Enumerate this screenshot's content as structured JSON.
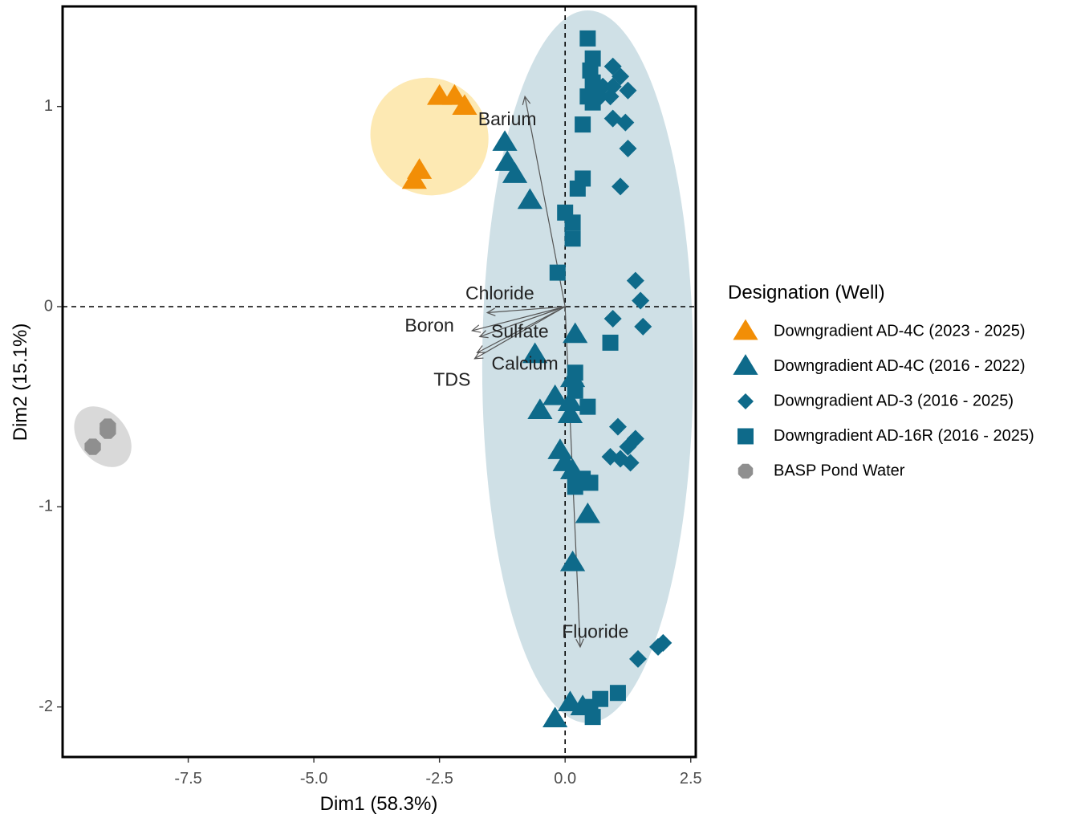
{
  "chart_data": {
    "type": "scatter",
    "title": "",
    "xlabel": "Dim1 (58.3%)",
    "ylabel": "Dim2 (15.1%)",
    "xlim": [
      -10.0,
      2.6
    ],
    "ylim": [
      -2.25,
      1.5
    ],
    "xticks": [
      {
        "value": -7.5,
        "label": "-7.5"
      },
      {
        "value": -5.0,
        "label": "-5.0"
      },
      {
        "value": -2.5,
        "label": "-2.5"
      },
      {
        "value": 0.0,
        "label": "0.0"
      },
      {
        "value": 2.5,
        "label": "2.5"
      }
    ],
    "yticks": [
      {
        "value": 1,
        "label": "1"
      },
      {
        "value": 0,
        "label": "0"
      },
      {
        "value": -1,
        "label": "-1"
      },
      {
        "value": -2,
        "label": "-2"
      }
    ],
    "reference_lines": {
      "x": 0,
      "y": 0,
      "style": "dashed"
    },
    "grid": false,
    "legend": {
      "title": "Designation (Well)",
      "placement": "right"
    },
    "series": [
      {
        "name": "Downgradient AD-4C (2023 - 2025)",
        "color": "#F28E06",
        "marker": "triangle",
        "ellipse": {
          "cx": -2.7,
          "cy": 0.85,
          "rx": 1.15,
          "ry": 0.3,
          "angle_deg": -48,
          "color": "#FDE9B3"
        },
        "points": [
          [
            -2.5,
            1.05
          ],
          [
            -2.2,
            1.05
          ],
          [
            -2.0,
            1.0
          ],
          [
            -2.9,
            0.68
          ],
          [
            -3.0,
            0.63
          ]
        ]
      },
      {
        "name": "Downgradient AD-4C (2016 - 2022)",
        "color": "#0E6A8A",
        "marker": "triangle",
        "ellipse": {
          "cx": 0.45,
          "cy": -0.3,
          "rx": 2.1,
          "ry": 1.78,
          "angle_deg": 0,
          "color": "#CFE0E6"
        },
        "points": [
          [
            -1.2,
            0.82
          ],
          [
            -1.15,
            0.72
          ],
          [
            -1.0,
            0.66
          ],
          [
            -0.7,
            0.53
          ],
          [
            0.2,
            -0.14
          ],
          [
            -0.6,
            -0.24
          ],
          [
            0.15,
            -0.36
          ],
          [
            -0.2,
            -0.45
          ],
          [
            0.1,
            -0.48
          ],
          [
            -0.5,
            -0.52
          ],
          [
            0.1,
            -0.54
          ],
          [
            -0.1,
            -0.72
          ],
          [
            0.0,
            -0.78
          ],
          [
            0.15,
            -0.82
          ],
          [
            0.45,
            -1.04
          ],
          [
            0.15,
            -1.28
          ],
          [
            0.1,
            -1.98
          ],
          [
            0.35,
            -2.0
          ],
          [
            -0.2,
            -2.06
          ]
        ]
      },
      {
        "name": "Downgradient AD-3 (2016 - 2025)",
        "color": "#0E6A8A",
        "marker": "diamond",
        "points": [
          [
            0.95,
            1.2
          ],
          [
            0.75,
            1.1
          ],
          [
            0.95,
            1.1
          ],
          [
            1.1,
            1.15
          ],
          [
            1.25,
            1.08
          ],
          [
            0.9,
            1.05
          ],
          [
            0.7,
            1.05
          ],
          [
            0.95,
            0.94
          ],
          [
            1.2,
            0.92
          ],
          [
            1.25,
            0.79
          ],
          [
            1.1,
            0.6
          ],
          [
            1.4,
            0.13
          ],
          [
            1.5,
            0.03
          ],
          [
            0.95,
            -0.06
          ],
          [
            1.55,
            -0.1
          ],
          [
            1.05,
            -0.6
          ],
          [
            1.4,
            -0.66
          ],
          [
            1.25,
            -0.7
          ],
          [
            0.9,
            -0.75
          ],
          [
            1.1,
            -0.76
          ],
          [
            1.3,
            -0.78
          ],
          [
            1.45,
            -1.76
          ],
          [
            1.85,
            -1.7
          ],
          [
            1.95,
            -1.68
          ]
        ]
      },
      {
        "name": "Downgradient AD-16R (2016 - 2025)",
        "color": "#0E6A8A",
        "marker": "square",
        "points": [
          [
            0.45,
            1.34
          ],
          [
            0.55,
            1.24
          ],
          [
            0.5,
            1.18
          ],
          [
            0.55,
            1.12
          ],
          [
            0.6,
            1.06
          ],
          [
            0.45,
            1.05
          ],
          [
            0.55,
            1.02
          ],
          [
            0.35,
            0.91
          ],
          [
            0.35,
            0.64
          ],
          [
            0.25,
            0.59
          ],
          [
            0.0,
            0.47
          ],
          [
            0.15,
            0.42
          ],
          [
            0.15,
            0.34
          ],
          [
            -0.15,
            0.17
          ],
          [
            0.9,
            -0.18
          ],
          [
            0.2,
            -0.33
          ],
          [
            0.2,
            -0.42
          ],
          [
            0.45,
            -0.5
          ],
          [
            0.35,
            -0.86
          ],
          [
            0.5,
            -0.88
          ],
          [
            0.2,
            -0.9
          ],
          [
            1.05,
            -1.93
          ],
          [
            0.7,
            -1.96
          ],
          [
            0.5,
            -2.0
          ],
          [
            0.55,
            -2.05
          ]
        ]
      },
      {
        "name": "BASP Pond Water",
        "color": "#8F8F8F",
        "marker": "octagon",
        "ellipse": {
          "cx": -9.2,
          "cy": -0.65,
          "rx": 0.48,
          "ry": 0.17,
          "angle_deg": -40,
          "color": "#D9D9D9"
        },
        "points": [
          [
            -9.1,
            -0.62
          ],
          [
            -9.1,
            -0.6
          ],
          [
            -9.4,
            -0.7
          ]
        ]
      }
    ],
    "variables": [
      {
        "name": "Barium",
        "x": -0.8,
        "y": 1.05,
        "label_x": -1.15,
        "label_y": 0.93
      },
      {
        "name": "Chloride",
        "x": -1.55,
        "y": -0.03,
        "label_x": -1.3,
        "label_y": 0.06
      },
      {
        "name": "Boron",
        "x": -1.85,
        "y": -0.12,
        "label_x": -2.7,
        "label_y": -0.1
      },
      {
        "name": "Sulfate",
        "x": -1.7,
        "y": -0.15,
        "label_x": -0.9,
        "label_y": -0.13
      },
      {
        "name": "Calcium",
        "x": -1.75,
        "y": -0.23,
        "label_x": -0.8,
        "label_y": -0.29
      },
      {
        "name": "TDS",
        "x": -1.8,
        "y": -0.26,
        "label_x": -2.25,
        "label_y": -0.37
      },
      {
        "name": "Fluoride",
        "x": 0.3,
        "y": -1.7,
        "label_x": 0.6,
        "label_y": -1.63
      }
    ]
  }
}
